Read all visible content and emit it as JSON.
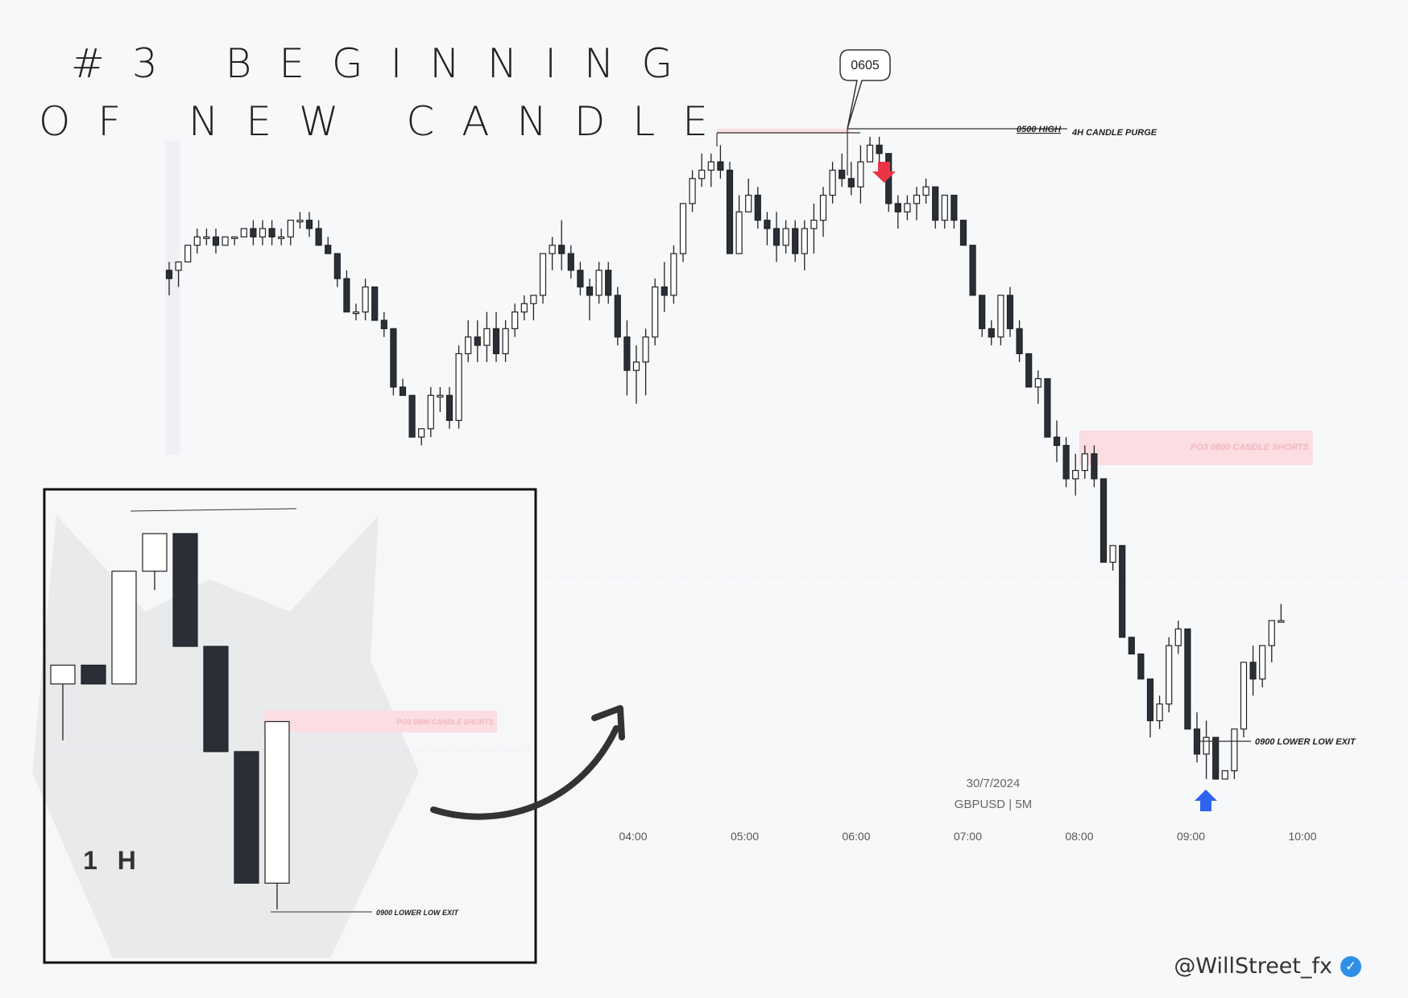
{
  "title": {
    "line1": "#3 BEGINNING",
    "line2": "OF NEW CANDLE"
  },
  "handle": "@WillStreet_fx",
  "colors": {
    "bull_fill": "#ffffff",
    "bear_fill": "#2a2e37",
    "zone": "#fbdde2",
    "arrow_down": "#ef3347",
    "arrow_up": "#2e64f0"
  },
  "icons": {
    "verified": "check-badge-icon",
    "curve_arrow": "curved-arrow-icon"
  },
  "chart_data": [
    {
      "type": "candlestick",
      "symbol_label": "GBPUSD | 5M",
      "date_label": "30/7/2024",
      "x_ticks": [
        "04:00",
        "05:00",
        "06:00",
        "07:00",
        "08:00",
        "09:00",
        "10:00"
      ],
      "annotations": {
        "callout": "0605",
        "high_label": "0500 HIGH",
        "purge_label": "4H CANDLE PURGE",
        "zone_label": "PO3 0800 CANDLE SHORTS",
        "exit_label": "0900 LOWER LOW EXIT"
      },
      "candles": [
        [
          61,
          62,
          58,
          60
        ],
        [
          61,
          62,
          59,
          62
        ],
        [
          62,
          64,
          62,
          64
        ],
        [
          64,
          66,
          63,
          65
        ],
        [
          65,
          66,
          64,
          65
        ],
        [
          65,
          66,
          63,
          64
        ],
        [
          64,
          65,
          64,
          65
        ],
        [
          65,
          65,
          64,
          65
        ],
        [
          65,
          66,
          65,
          66
        ],
        [
          66,
          67,
          64,
          65
        ],
        [
          65,
          67,
          64,
          66
        ],
        [
          66,
          67,
          64,
          65
        ],
        [
          65,
          66,
          64,
          65
        ],
        [
          65,
          67,
          64,
          67
        ],
        [
          67,
          68,
          66,
          67
        ],
        [
          67,
          68,
          65,
          66
        ],
        [
          66,
          67,
          64,
          64
        ],
        [
          64,
          65,
          63,
          63
        ],
        [
          63,
          63,
          59,
          60
        ],
        [
          60,
          61,
          56,
          56
        ],
        [
          56,
          57,
          55,
          56
        ],
        [
          56,
          60,
          55,
          59
        ],
        [
          59,
          59,
          55,
          55
        ],
        [
          55,
          56,
          53,
          54
        ],
        [
          54,
          54,
          46,
          47
        ],
        [
          47,
          48,
          46,
          46
        ],
        [
          46,
          46,
          41,
          41
        ],
        [
          41,
          42,
          40,
          42
        ],
        [
          42,
          47,
          41,
          46
        ],
        [
          46,
          47,
          44,
          46
        ],
        [
          46,
          47,
          42,
          43
        ],
        [
          43,
          52,
          42,
          51
        ],
        [
          51,
          55,
          50,
          53
        ],
        [
          53,
          55,
          50,
          52
        ],
        [
          52,
          56,
          50,
          54
        ],
        [
          54,
          56,
          50,
          51
        ],
        [
          51,
          55,
          50,
          54
        ],
        [
          54,
          57,
          53,
          56
        ],
        [
          56,
          58,
          55,
          57
        ],
        [
          57,
          58,
          55,
          58
        ],
        [
          58,
          63,
          57,
          63
        ],
        [
          63,
          65,
          61,
          64
        ],
        [
          64,
          67,
          61,
          63
        ],
        [
          63,
          64,
          60,
          61
        ],
        [
          61,
          62,
          58,
          59
        ],
        [
          59,
          60,
          55,
          58
        ],
        [
          58,
          62,
          57,
          61
        ],
        [
          61,
          62,
          57,
          58
        ],
        [
          58,
          59,
          52,
          53
        ],
        [
          53,
          55,
          46,
          49
        ],
        [
          49,
          52,
          45,
          50
        ],
        [
          50,
          54,
          46,
          53
        ],
        [
          53,
          60,
          52,
          59
        ],
        [
          59,
          62,
          56,
          58
        ],
        [
          58,
          64,
          57,
          63
        ],
        [
          63,
          69,
          62,
          69
        ],
        [
          69,
          73,
          68,
          72
        ],
        [
          72,
          75,
          71,
          73
        ],
        [
          73,
          75,
          71,
          74
        ],
        [
          74,
          76,
          72,
          73
        ],
        [
          73,
          74,
          63,
          63
        ],
        [
          63,
          70,
          63,
          68
        ],
        [
          68,
          72,
          68,
          70
        ],
        [
          70,
          71,
          66,
          67
        ],
        [
          67,
          68,
          64,
          66
        ],
        [
          66,
          68,
          62,
          64
        ],
        [
          64,
          67,
          63,
          66
        ],
        [
          66,
          67,
          62,
          63
        ],
        [
          63,
          67,
          61,
          66
        ],
        [
          66,
          69,
          63,
          67
        ],
        [
          67,
          71,
          65,
          70
        ],
        [
          70,
          74,
          69,
          73
        ],
        [
          73,
          75,
          71,
          72
        ],
        [
          72,
          74,
          70,
          71
        ],
        [
          71,
          76,
          69,
          74
        ],
        [
          74,
          77,
          74,
          76
        ],
        [
          76,
          77,
          74,
          75
        ],
        [
          75,
          75,
          68,
          69
        ],
        [
          69,
          70,
          66,
          68
        ],
        [
          68,
          70,
          67,
          69
        ],
        [
          69,
          71,
          67,
          70
        ],
        [
          70,
          72,
          69,
          71
        ],
        [
          71,
          71,
          66,
          67
        ],
        [
          67,
          70,
          66,
          70
        ],
        [
          70,
          70,
          66,
          67
        ],
        [
          67,
          67,
          64,
          64
        ],
        [
          64,
          64,
          58,
          58
        ],
        [
          58,
          58,
          53,
          54
        ],
        [
          54,
          55,
          52,
          53
        ],
        [
          53,
          58,
          52,
          58
        ],
        [
          58,
          59,
          53,
          54
        ],
        [
          54,
          55,
          50,
          51
        ],
        [
          51,
          51,
          47,
          47
        ],
        [
          47,
          49,
          45,
          48
        ],
        [
          48,
          48,
          41,
          41
        ],
        [
          41,
          43,
          38,
          40
        ],
        [
          40,
          41,
          35,
          36
        ],
        [
          36,
          39,
          34,
          37
        ],
        [
          37,
          40,
          36,
          39
        ],
        [
          39,
          40,
          35,
          36
        ],
        [
          36,
          36,
          26,
          26
        ],
        [
          26,
          28,
          25,
          28
        ],
        [
          28,
          28,
          17,
          17
        ],
        [
          17,
          17,
          15,
          15
        ],
        [
          15,
          15,
          12,
          12
        ],
        [
          12,
          12,
          5,
          7
        ],
        [
          7,
          10,
          6,
          9
        ],
        [
          9,
          17,
          8,
          16
        ],
        [
          16,
          19,
          15,
          18
        ],
        [
          18,
          18,
          6,
          6
        ],
        [
          6,
          8,
          2,
          3
        ],
        [
          3,
          7,
          0,
          5
        ],
        [
          5,
          5,
          0,
          0
        ],
        [
          0,
          1,
          0,
          1
        ],
        [
          1,
          6,
          0,
          6
        ],
        [
          6,
          14,
          5,
          14
        ],
        [
          14,
          16,
          10,
          12
        ],
        [
          12,
          16,
          11,
          16
        ],
        [
          16,
          19,
          14,
          19
        ],
        [
          19,
          21,
          19,
          19
        ]
      ]
    },
    {
      "type": "candlestick",
      "timeframe_label": "1 H",
      "annotations": {
        "zone_label": "PO3 0800 CANDLE SHORTS",
        "exit_label": "0900 LOWER LOW EXIT"
      },
      "candles": [
        [
          60,
          65,
          45,
          65
        ],
        [
          65,
          65,
          60,
          60
        ],
        [
          60,
          90,
          60,
          90
        ],
        [
          90,
          100,
          85,
          100
        ],
        [
          100,
          100,
          70,
          70
        ],
        [
          70,
          70,
          42,
          42
        ],
        [
          42,
          42,
          7,
          7
        ],
        [
          7,
          50,
          0,
          50
        ]
      ]
    }
  ]
}
